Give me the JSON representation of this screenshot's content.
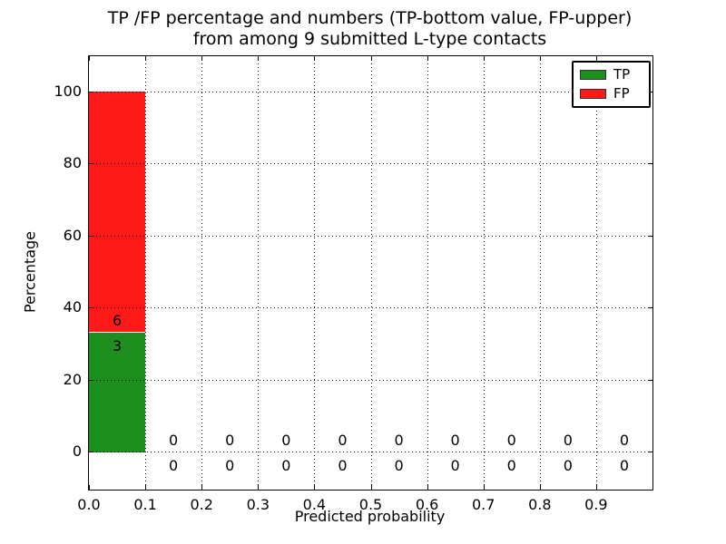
{
  "header": {
    "title_line1": "TP /FP percentage and numbers (TP-bottom value, FP-upper)",
    "title_line2": "from among 9 submitted L-type contacts"
  },
  "axes": {
    "xlabel": "Predicted probability",
    "ylabel": "Percentage"
  },
  "legend": {
    "position": "upper right",
    "entries": [
      {
        "label": "TP",
        "color": "#1e8f1e"
      },
      {
        "label": "FP",
        "color": "#ff1a1a"
      }
    ]
  },
  "chart_data": {
    "type": "bar",
    "stacked": true,
    "title": "TP /FP percentage and numbers (TP-bottom value, FP-upper) from among 9 submitted L-type contacts",
    "xlabel": "Predicted probability",
    "ylabel": "Percentage",
    "total_submitted_contacts": 9,
    "bin_width": 0.1,
    "categories": [
      "0.0-0.1",
      "0.1-0.2",
      "0.2-0.3",
      "0.3-0.4",
      "0.4-0.5",
      "0.5-0.6",
      "0.6-0.7",
      "0.7-0.8",
      "0.8-0.9",
      "0.9-1.0"
    ],
    "series": [
      {
        "name": "TP",
        "color": "#1e8f1e",
        "counts": [
          3,
          0,
          0,
          0,
          0,
          0,
          0,
          0,
          0,
          0
        ],
        "percent": [
          33.33,
          0,
          0,
          0,
          0,
          0,
          0,
          0,
          0,
          0
        ]
      },
      {
        "name": "FP",
        "color": "#ff1a1a",
        "counts": [
          6,
          0,
          0,
          0,
          0,
          0,
          0,
          0,
          0,
          0
        ],
        "percent": [
          66.67,
          0,
          0,
          0,
          0,
          0,
          0,
          0,
          0,
          0
        ]
      }
    ],
    "xlim": [
      0,
      1
    ],
    "ylim": [
      -10.6,
      109.8
    ],
    "xticks": [
      0,
      0.1,
      0.2,
      0.3,
      0.4,
      0.5,
      0.6,
      0.7,
      0.8,
      0.9
    ],
    "xticklabels": [
      "0.0",
      "0.1",
      "0.2",
      "0.3",
      "0.4",
      "0.5",
      "0.6",
      "0.7",
      "0.8",
      "0.9"
    ],
    "yticks": [
      0,
      20,
      40,
      60,
      80,
      100
    ],
    "yticklabels": [
      "0",
      "20",
      "40",
      "60",
      "80",
      "100"
    ],
    "grid": {
      "style": "dotted",
      "color": "#000000",
      "drawn_above_bars": true
    },
    "annotation_offsets": {
      "fp_label_above_boundary": 3.2,
      "tp_label_below_boundary": 3.8
    },
    "legend_position": "upper right"
  }
}
